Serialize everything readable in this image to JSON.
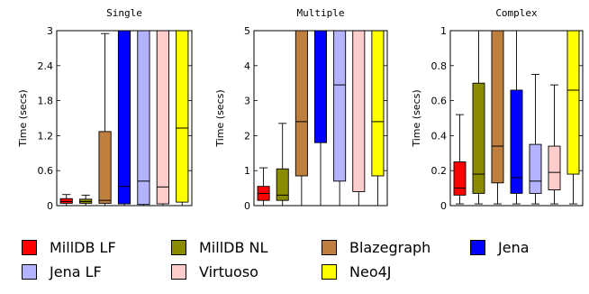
{
  "chart_data": [
    {
      "type": "box",
      "title": "Single",
      "ylabel": "Time (secs)",
      "ylim": [
        0,
        3
      ],
      "yticks": [
        "0",
        "0.6",
        "1.2",
        "1.8",
        "2.4",
        "3"
      ],
      "boxes": [
        {
          "series": "MillDB LF",
          "min": 0.0,
          "q1": 0.04,
          "median": 0.07,
          "q3": 0.12,
          "max": 0.19
        },
        {
          "series": "MillDB NL",
          "min": 0.0,
          "q1": 0.04,
          "median": 0.07,
          "q3": 0.11,
          "max": 0.18
        },
        {
          "series": "Blazegraph",
          "min": 0.0,
          "q1": 0.04,
          "median": 0.09,
          "q3": 1.27,
          "max": 2.95
        },
        {
          "series": "Jena",
          "min": 0.0,
          "q1": 0.03,
          "median": 0.33,
          "q3": 3.0,
          "max": 3.0
        },
        {
          "series": "Jena LF",
          "min": 0.0,
          "q1": 0.02,
          "median": 0.42,
          "q3": 3.0,
          "max": 3.0
        },
        {
          "series": "Virtuoso",
          "min": 0.0,
          "q1": 0.03,
          "median": 0.32,
          "q3": 3.0,
          "max": 3.0
        },
        {
          "series": "Neo4J",
          "min": 0.0,
          "q1": 0.06,
          "median": 1.33,
          "q3": 3.0,
          "max": 3.0
        }
      ]
    },
    {
      "type": "box",
      "title": "Multiple",
      "ylabel": "Time (secs)",
      "ylim": [
        0,
        5
      ],
      "yticks": [
        "0",
        "1",
        "2",
        "3",
        "4",
        "5"
      ],
      "boxes": [
        {
          "series": "MillDB LF",
          "min": 0.0,
          "q1": 0.15,
          "median": 0.35,
          "q3": 0.55,
          "max": 1.08
        },
        {
          "series": "MillDB NL",
          "min": 0.0,
          "q1": 0.15,
          "median": 0.3,
          "q3": 1.05,
          "max": 2.35
        },
        {
          "series": "Blazegraph",
          "min": 0.0,
          "q1": 0.85,
          "median": 2.4,
          "q3": 5.0,
          "max": 5.0
        },
        {
          "series": "Jena",
          "min": 0.0,
          "q1": 1.8,
          "median": 5.0,
          "q3": 5.0,
          "max": 5.0
        },
        {
          "series": "Jena LF",
          "min": 0.0,
          "q1": 0.7,
          "median": 3.45,
          "q3": 5.0,
          "max": 5.0
        },
        {
          "series": "Virtuoso",
          "min": 0.0,
          "q1": 0.4,
          "median": 5.0,
          "q3": 5.0,
          "max": 5.0
        },
        {
          "series": "Neo4J",
          "min": 0.0,
          "q1": 0.85,
          "median": 2.4,
          "q3": 5.0,
          "max": 5.0
        }
      ]
    },
    {
      "type": "box",
      "title": "Complex",
      "ylabel": "Time (secs)",
      "ylim": [
        0,
        1
      ],
      "yticks": [
        "0",
        "0.2",
        "0.4",
        "0.6",
        "0.8",
        "1"
      ],
      "boxes": [
        {
          "series": "MillDB LF",
          "min": 0.01,
          "q1": 0.06,
          "median": 0.1,
          "q3": 0.25,
          "max": 0.52
        },
        {
          "series": "MillDB NL",
          "min": 0.01,
          "q1": 0.07,
          "median": 0.18,
          "q3": 0.7,
          "max": 1.0
        },
        {
          "series": "Blazegraph",
          "min": 0.01,
          "q1": 0.13,
          "median": 0.34,
          "q3": 1.0,
          "max": 1.0
        },
        {
          "series": "Jena",
          "min": 0.01,
          "q1": 0.07,
          "median": 0.16,
          "q3": 0.66,
          "max": 1.0
        },
        {
          "series": "Jena LF",
          "min": 0.01,
          "q1": 0.07,
          "median": 0.14,
          "q3": 0.35,
          "max": 0.75
        },
        {
          "series": "Virtuoso",
          "min": 0.01,
          "q1": 0.09,
          "median": 0.19,
          "q3": 0.34,
          "max": 0.69
        },
        {
          "series": "Neo4J",
          "min": 0.01,
          "q1": 0.18,
          "median": 0.66,
          "q3": 1.0,
          "max": 1.0
        }
      ]
    }
  ],
  "legend": {
    "items": [
      {
        "label": "MillDB LF",
        "color": "#ff0000"
      },
      {
        "label": "MillDB NL",
        "color": "#8b8b00"
      },
      {
        "label": "Blazegraph",
        "color": "#bf7f3f"
      },
      {
        "label": "Jena",
        "color": "#0000ff"
      },
      {
        "label": "Jena LF",
        "color": "#b3b3ff"
      },
      {
        "label": "Virtuoso",
        "color": "#ffcccc"
      },
      {
        "label": "Neo4J",
        "color": "#ffff00"
      }
    ]
  }
}
